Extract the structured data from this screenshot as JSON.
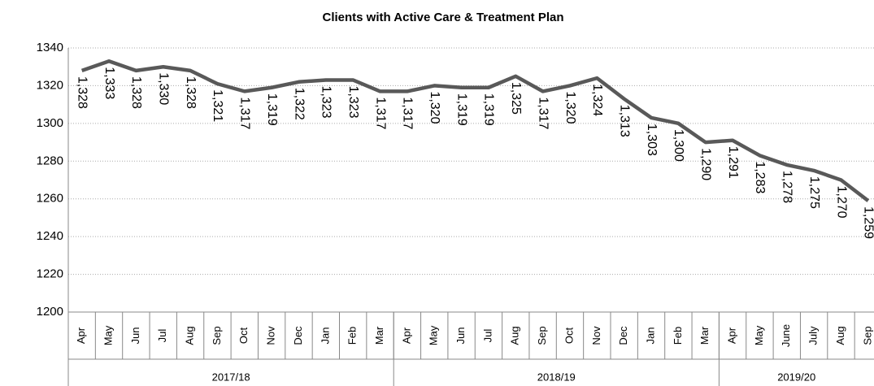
{
  "chart_data": {
    "type": "line",
    "title": "Clients with Active Care & Treatment Plan",
    "categories": [
      "Apr",
      "May",
      "Jun",
      "Jul",
      "Aug",
      "Sep",
      "Oct",
      "Nov",
      "Dec",
      "Jan",
      "Feb",
      "Mar",
      "Apr",
      "May",
      "Jun",
      "Jul",
      "Aug",
      "Sep",
      "Oct",
      "Nov",
      "Dec",
      "Jan",
      "Feb",
      "Mar",
      "Apr",
      "May",
      "June",
      "July",
      "Aug",
      "Sep"
    ],
    "groups": [
      {
        "label": "2017/18",
        "span": 12
      },
      {
        "label": "2018/19",
        "span": 12
      },
      {
        "label": "2019/20",
        "span": 6
      }
    ],
    "series": [
      {
        "name": "Clients",
        "color": "#595959",
        "values": [
          1328,
          1333,
          1328,
          1330,
          1328,
          1321,
          1317,
          1319,
          1322,
          1323,
          1323,
          1317,
          1317,
          1320,
          1319,
          1319,
          1325,
          1317,
          1320,
          1324,
          1313,
          1303,
          1300,
          1290,
          1291,
          1283,
          1278,
          1275,
          1270,
          1259
        ],
        "value_labels": [
          "1,328",
          "1,333",
          "1,328",
          "1,330",
          "1,328",
          "1,321",
          "1,317",
          "1,319",
          "1,322",
          "1,323",
          "1,323",
          "1,317",
          "1,317",
          "1,320",
          "1,319",
          "1,319",
          "1,325",
          "1,317",
          "1,320",
          "1,324",
          "1,313",
          "1,303",
          "1,300",
          "1,290",
          "1,291",
          "1,283",
          "1,278",
          "1,275",
          "1,270",
          "1,259"
        ]
      }
    ],
    "ylim": [
      1200,
      1340
    ],
    "yticks": [
      1200,
      1220,
      1240,
      1260,
      1280,
      1300,
      1320,
      1340
    ],
    "grid": true
  }
}
